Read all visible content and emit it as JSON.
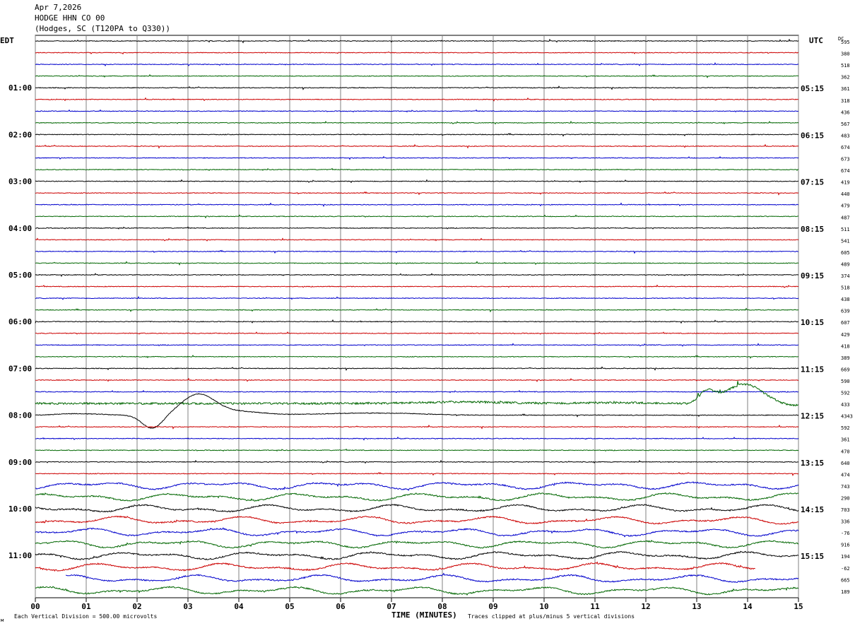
{
  "header": {
    "date": "Apr 7,2026",
    "station": "HODGE HHN CO 00",
    "location": "(Hodges, SC (T120PA to Q330))"
  },
  "axes": {
    "left_label": "EDT",
    "right_label": "UTC",
    "dc_label": "DC",
    "xlabel": "TIME (MINUTES)",
    "x_ticks": [
      "00",
      "01",
      "02",
      "03",
      "04",
      "05",
      "06",
      "07",
      "08",
      "09",
      "10",
      "11",
      "12",
      "13",
      "14",
      "15"
    ],
    "xlim": [
      0,
      15
    ]
  },
  "footer": {
    "scale": "Each Vertical Division =  500.00 microvolts",
    "clip": "Traces clipped at plus/minus 5 vertical divisions"
  },
  "colors": {
    "trace_cycle": [
      "#000000",
      "#cc0000",
      "#0000cc",
      "#006600"
    ],
    "grid": "#808080"
  },
  "chart_data": {
    "type": "line",
    "left_time_labels": [
      {
        "row": 4,
        "label": "01:00"
      },
      {
        "row": 8,
        "label": "02:00"
      },
      {
        "row": 12,
        "label": "03:00"
      },
      {
        "row": 16,
        "label": "04:00"
      },
      {
        "row": 20,
        "label": "05:00"
      },
      {
        "row": 24,
        "label": "06:00"
      },
      {
        "row": 28,
        "label": "07:00"
      },
      {
        "row": 32,
        "label": "08:00"
      },
      {
        "row": 36,
        "label": "09:00"
      },
      {
        "row": 40,
        "label": "10:00"
      },
      {
        "row": 44,
        "label": "11:00"
      }
    ],
    "right_time_labels": [
      {
        "row": 4,
        "label": "05:15"
      },
      {
        "row": 8,
        "label": "06:15"
      },
      {
        "row": 12,
        "label": "07:15"
      },
      {
        "row": 16,
        "label": "08:15"
      },
      {
        "row": 20,
        "label": "09:15"
      },
      {
        "row": 24,
        "label": "10:15"
      },
      {
        "row": 28,
        "label": "11:15"
      },
      {
        "row": 32,
        "label": "12:15"
      },
      {
        "row": 36,
        "label": "13:15"
      },
      {
        "row": 40,
        "label": "14:15"
      },
      {
        "row": 44,
        "label": "15:15"
      }
    ],
    "dc_values": [
      "595",
      "380",
      "518",
      "362",
      "361",
      "318",
      "436",
      "567",
      "483",
      "674",
      "673",
      "674",
      "419",
      "440",
      "479",
      "487",
      "511",
      "541",
      "605",
      "489",
      "374",
      "518",
      "438",
      "639",
      "607",
      "429",
      "418",
      "389",
      "669",
      "590",
      "592",
      "433",
      "4343",
      "592",
      "361",
      "470",
      "640",
      "474",
      "743",
      "290",
      "703",
      "336",
      "-76",
      "916",
      "194",
      "-62",
      "665",
      "189"
    ]
  }
}
